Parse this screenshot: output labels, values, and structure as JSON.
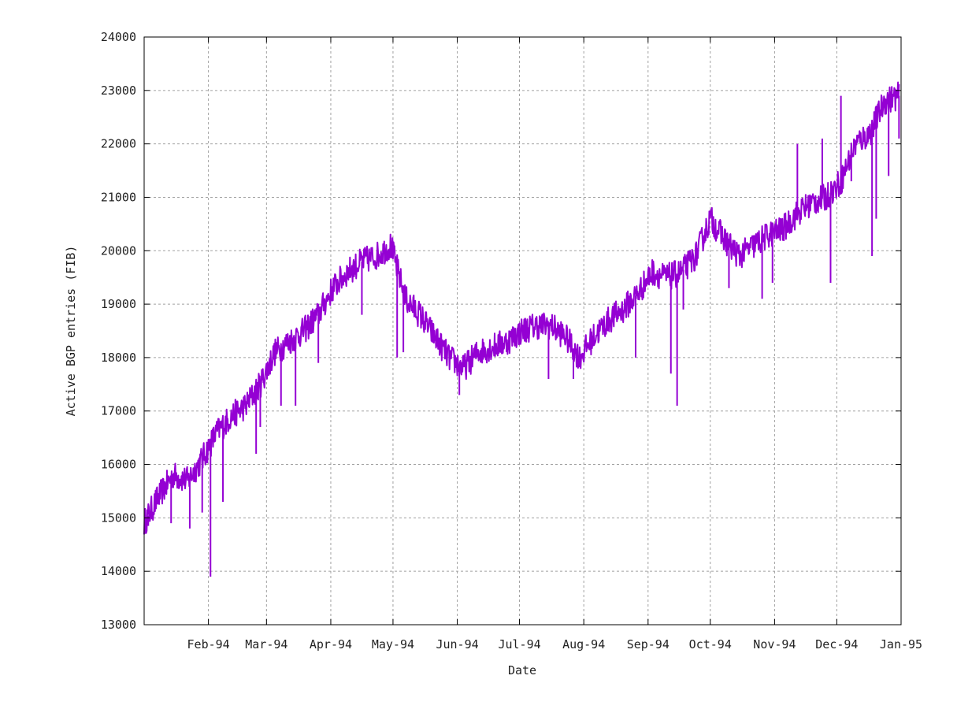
{
  "chart_data": {
    "type": "line",
    "title": "",
    "xlabel": "Date",
    "ylabel": "Active BGP entries (FIB)",
    "x_tick_labels": [
      "Feb-94",
      "Mar-94",
      "Apr-94",
      "May-94",
      "Jun-94",
      "Jul-94",
      "Aug-94",
      "Sep-94",
      "Oct-94",
      "Nov-94",
      "Dec-94",
      "Jan-95"
    ],
    "x_tick_dates": [
      "1994-02-01",
      "1994-03-01",
      "1994-04-01",
      "1994-05-01",
      "1994-06-01",
      "1994-07-01",
      "1994-08-01",
      "1994-09-01",
      "1994-10-01",
      "1994-11-01",
      "1994-12-01",
      "1995-01-01"
    ],
    "xlim": [
      "1994-01-01",
      "1995-01-01"
    ],
    "y_tick_labels": [
      "13000",
      "14000",
      "15000",
      "16000",
      "17000",
      "18000",
      "19000",
      "20000",
      "21000",
      "22000",
      "23000",
      "24000"
    ],
    "ylim": [
      13000,
      24000
    ],
    "grid": true,
    "legend": "none",
    "series_color": "#9400d3",
    "series": [
      {
        "x": [
          "1994-01-01",
          "1994-01-08",
          "1994-01-15",
          "1994-01-22",
          "1994-01-29",
          "1994-02-05",
          "1994-02-12",
          "1994-02-19",
          "1994-02-26",
          "1994-03-05",
          "1994-03-12",
          "1994-03-19",
          "1994-03-26",
          "1994-04-02",
          "1994-04-09",
          "1994-04-16",
          "1994-04-23",
          "1994-04-30",
          "1994-05-07",
          "1994-05-14",
          "1994-05-21",
          "1994-05-28",
          "1994-06-04",
          "1994-06-11",
          "1994-06-18",
          "1994-06-25",
          "1994-07-02",
          "1994-07-09",
          "1994-07-16",
          "1994-07-23",
          "1994-07-30",
          "1994-08-06",
          "1994-08-13",
          "1994-08-20",
          "1994-08-27",
          "1994-09-03",
          "1994-09-10",
          "1994-09-17",
          "1994-09-24",
          "1994-10-01",
          "1994-10-08",
          "1994-10-15",
          "1994-10-22",
          "1994-10-29",
          "1994-11-05",
          "1994-11-12",
          "1994-11-19",
          "1994-11-26",
          "1994-12-03",
          "1994-12-10",
          "1994-12-17",
          "1994-12-24",
          "1994-12-31"
        ],
        "values": [
          14900,
          15400,
          15800,
          15700,
          16100,
          16600,
          16900,
          17100,
          17500,
          18100,
          18300,
          18500,
          18800,
          19300,
          19600,
          19800,
          19900,
          20100,
          19100,
          18800,
          18400,
          18000,
          17800,
          18100,
          18200,
          18300,
          18500,
          18600,
          18600,
          18400,
          18000,
          18400,
          18700,
          18900,
          19200,
          19600,
          19500,
          19600,
          19900,
          20600,
          20200,
          19900,
          20100,
          20300,
          20400,
          20700,
          20900,
          21000,
          21300,
          22000,
          22200,
          22800,
          22900
        ]
      }
    ],
    "spikes": [
      {
        "x": "1994-01-03",
        "y": 14850
      },
      {
        "x": "1994-01-14",
        "y": 14900
      },
      {
        "x": "1994-01-23",
        "y": 14800
      },
      {
        "x": "1994-01-29",
        "y": 15100
      },
      {
        "x": "1994-02-02",
        "y": 13900
      },
      {
        "x": "1994-02-08",
        "y": 15300
      },
      {
        "x": "1994-02-24",
        "y": 16200
      },
      {
        "x": "1994-02-26",
        "y": 16700
      },
      {
        "x": "1994-03-08",
        "y": 17100
      },
      {
        "x": "1994-03-15",
        "y": 17100
      },
      {
        "x": "1994-03-26",
        "y": 17900
      },
      {
        "x": "1994-04-16",
        "y": 18800
      },
      {
        "x": "1994-05-03",
        "y": 18000
      },
      {
        "x": "1994-05-06",
        "y": 18100
      },
      {
        "x": "1994-06-02",
        "y": 17300
      },
      {
        "x": "1994-07-15",
        "y": 17600
      },
      {
        "x": "1994-07-27",
        "y": 17600
      },
      {
        "x": "1994-08-26",
        "y": 18000
      },
      {
        "x": "1994-09-12",
        "y": 17700
      },
      {
        "x": "1994-09-15",
        "y": 17100
      },
      {
        "x": "1994-09-18",
        "y": 18900
      },
      {
        "x": "1994-10-10",
        "y": 19300
      },
      {
        "x": "1994-10-26",
        "y": 19100
      },
      {
        "x": "1994-10-31",
        "y": 19400
      },
      {
        "x": "1994-11-12",
        "y": 22000
      },
      {
        "x": "1994-11-24",
        "y": 22100
      },
      {
        "x": "1994-11-28",
        "y": 19400
      },
      {
        "x": "1994-12-03",
        "y": 22900
      },
      {
        "x": "1994-12-08",
        "y": 21300
      },
      {
        "x": "1994-12-18",
        "y": 19900
      },
      {
        "x": "1994-12-20",
        "y": 20600
      },
      {
        "x": "1994-12-26",
        "y": 21400
      },
      {
        "x": "1994-12-31",
        "y": 22100
      }
    ]
  }
}
